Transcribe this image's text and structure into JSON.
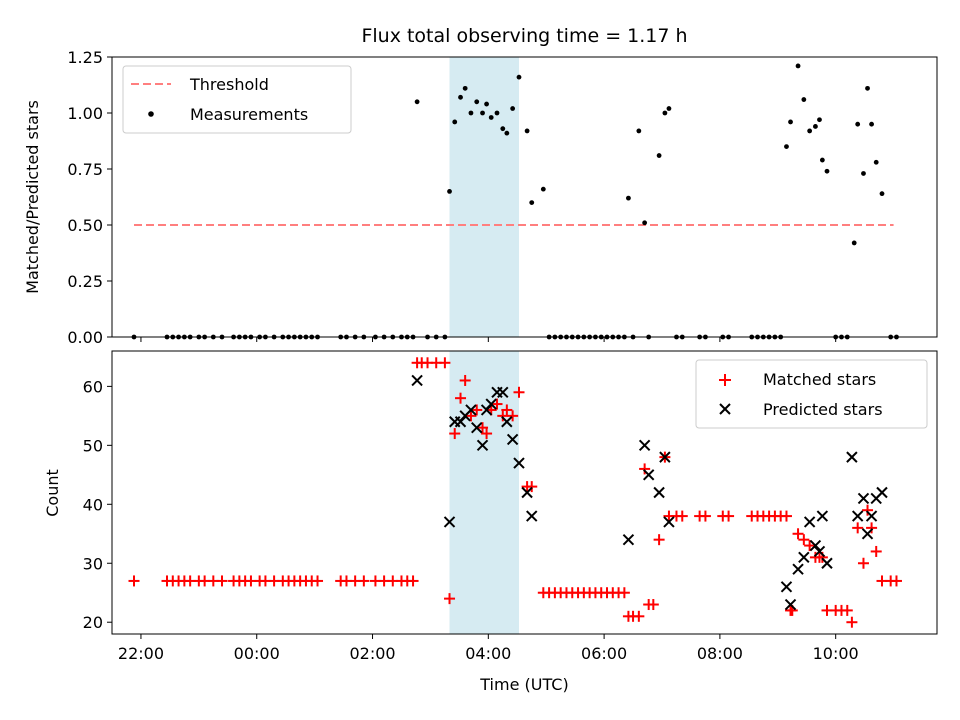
{
  "chart_data": {
    "type": "scatter",
    "title": "Flux total observing time = 1.17 h",
    "xlabel": "Time (UTC)",
    "x_units": "hours since 00:00 UTC",
    "xlim": [
      -2.5,
      11.75
    ],
    "x_ticks": [
      {
        "value": -2,
        "label": "22:00"
      },
      {
        "value": 0,
        "label": "00:00"
      },
      {
        "value": 2,
        "label": "02:00"
      },
      {
        "value": 4,
        "label": "04:00"
      },
      {
        "value": 6,
        "label": "06:00"
      },
      {
        "value": 8,
        "label": "08:00"
      },
      {
        "value": 10,
        "label": "10:00"
      }
    ],
    "highlight_span": {
      "start": 3.33,
      "end": 4.53,
      "color": "#add8e6"
    },
    "top": {
      "ylabel": "Matched/Predicted stars",
      "ylim": [
        0,
        1.25
      ],
      "y_ticks": [
        {
          "value": 0,
          "label": "0.00"
        },
        {
          "value": 0.25,
          "label": "0.25"
        },
        {
          "value": 0.5,
          "label": "0.50"
        },
        {
          "value": 0.75,
          "label": "0.75"
        },
        {
          "value": 1.0,
          "label": "1.00"
        },
        {
          "value": 1.25,
          "label": "1.25"
        }
      ],
      "legend": {
        "position": "upper-left",
        "threshold_label": "Threshold",
        "measurements_label": "Measurements"
      },
      "threshold": {
        "value": 0.5,
        "x_range": [
          -2.12,
          11.0
        ],
        "color": "#ff7f7f"
      },
      "measurements": {
        "color": "#000000",
        "x": [
          -2.12,
          -1.55,
          -1.45,
          -1.35,
          -1.25,
          -1.15,
          -1.0,
          -0.9,
          -0.75,
          -0.6,
          -0.4,
          -0.3,
          -0.2,
          -0.1,
          0.05,
          0.15,
          0.3,
          0.45,
          0.55,
          0.65,
          0.75,
          0.85,
          0.95,
          1.05,
          1.45,
          1.55,
          1.7,
          1.85,
          2.05,
          2.2,
          2.35,
          2.5,
          2.6,
          2.7,
          2.77,
          2.95,
          3.1,
          3.25,
          3.33,
          3.42,
          3.52,
          3.6,
          3.7,
          3.8,
          3.9,
          3.97,
          4.05,
          4.15,
          4.25,
          4.32,
          4.42,
          4.53,
          4.67,
          4.75,
          4.95,
          5.05,
          5.15,
          5.25,
          5.35,
          5.45,
          5.55,
          5.65,
          5.75,
          5.85,
          5.95,
          6.05,
          6.15,
          6.25,
          6.35,
          6.42,
          6.5,
          6.6,
          6.7,
          6.77,
          6.95,
          7.05,
          7.12,
          7.25,
          7.35,
          7.65,
          7.75,
          8.05,
          8.15,
          8.55,
          8.65,
          8.75,
          8.85,
          8.95,
          9.05,
          9.15,
          9.22,
          9.35,
          9.45,
          9.55,
          9.65,
          9.72,
          9.77,
          9.85,
          10.0,
          10.1,
          10.2,
          10.32,
          10.38,
          10.48,
          10.55,
          10.62,
          10.7,
          10.8,
          10.95,
          11.05
        ],
        "y": [
          0.0,
          0.0,
          0.0,
          0.0,
          0.0,
          0.0,
          0.0,
          0.0,
          0.0,
          0.0,
          0.0,
          0.0,
          0.0,
          0.0,
          0.0,
          0.0,
          0.0,
          0.0,
          0.0,
          0.0,
          0.0,
          0.0,
          0.0,
          0.0,
          0.0,
          0.0,
          0.0,
          0.0,
          0.0,
          0.0,
          0.0,
          0.0,
          0.0,
          0.0,
          1.05,
          0.0,
          0.0,
          0.0,
          0.65,
          0.96,
          1.07,
          1.11,
          1.0,
          1.05,
          1.0,
          1.04,
          0.98,
          1.0,
          0.93,
          0.91,
          1.02,
          1.16,
          0.92,
          0.6,
          0.66,
          0.0,
          0.0,
          0.0,
          0.0,
          0.0,
          0.0,
          0.0,
          0.0,
          0.0,
          0.0,
          0.0,
          0.0,
          0.0,
          0.0,
          0.62,
          0.0,
          0.92,
          0.51,
          0.0,
          0.81,
          1.0,
          1.02,
          0.0,
          0.0,
          0.0,
          0.0,
          0.0,
          0.0,
          0.0,
          0.0,
          0.0,
          0.0,
          0.0,
          0.0,
          0.85,
          0.96,
          1.21,
          1.06,
          0.92,
          0.94,
          0.97,
          0.79,
          0.74,
          0.0,
          0.0,
          0.0,
          0.42,
          0.95,
          0.73,
          1.11,
          0.95,
          0.78,
          0.64,
          0.0,
          0.0
        ]
      }
    },
    "bottom": {
      "ylabel": "Count",
      "ylim": [
        18,
        66
      ],
      "y_ticks": [
        {
          "value": 20,
          "label": "20"
        },
        {
          "value": 30,
          "label": "30"
        },
        {
          "value": 40,
          "label": "40"
        },
        {
          "value": 50,
          "label": "50"
        },
        {
          "value": 60,
          "label": "60"
        }
      ],
      "legend": {
        "position": "upper-right",
        "matched_label": "Matched stars",
        "predicted_label": "Predicted stars"
      },
      "matched": {
        "color": "#ff0000",
        "x": [
          -2.12,
          -1.55,
          -1.45,
          -1.35,
          -1.25,
          -1.15,
          -1.0,
          -0.9,
          -0.75,
          -0.6,
          -0.4,
          -0.3,
          -0.2,
          -0.1,
          0.05,
          0.15,
          0.3,
          0.45,
          0.55,
          0.65,
          0.75,
          0.85,
          0.95,
          1.05,
          1.45,
          1.55,
          1.7,
          1.85,
          2.05,
          2.2,
          2.35,
          2.5,
          2.6,
          2.7,
          2.77,
          2.85,
          2.95,
          3.1,
          3.25,
          3.33,
          3.42,
          3.52,
          3.6,
          3.7,
          3.8,
          3.9,
          3.97,
          4.05,
          4.15,
          4.25,
          4.32,
          4.42,
          4.53,
          4.67,
          4.75,
          4.95,
          5.05,
          5.15,
          5.25,
          5.35,
          5.45,
          5.55,
          5.65,
          5.75,
          5.85,
          5.95,
          6.05,
          6.15,
          6.25,
          6.35,
          6.42,
          6.5,
          6.6,
          6.7,
          6.77,
          6.85,
          6.95,
          7.05,
          7.12,
          7.25,
          7.35,
          7.65,
          7.75,
          8.05,
          8.15,
          8.55,
          8.65,
          8.75,
          8.85,
          8.95,
          9.05,
          9.15,
          9.22,
          9.25,
          9.35,
          9.45,
          9.55,
          9.65,
          9.72,
          9.77,
          9.85,
          10.0,
          10.1,
          10.2,
          10.28,
          10.38,
          10.48,
          10.55,
          10.62,
          10.7,
          10.8,
          10.95,
          11.05
        ],
        "y": [
          27,
          27,
          27,
          27,
          27,
          27,
          27,
          27,
          27,
          27,
          27,
          27,
          27,
          27,
          27,
          27,
          27,
          27,
          27,
          27,
          27,
          27,
          27,
          27,
          27,
          27,
          27,
          27,
          27,
          27,
          27,
          27,
          27,
          27,
          64,
          64,
          64,
          64,
          64,
          24,
          52,
          58,
          61,
          55,
          56,
          53,
          52,
          56,
          57,
          55,
          56,
          55,
          59,
          43,
          43,
          25,
          25,
          25,
          25,
          25,
          25,
          25,
          25,
          25,
          25,
          25,
          25,
          25,
          25,
          25,
          21,
          21,
          21,
          46,
          23,
          23,
          34,
          48,
          38,
          38,
          38,
          38,
          38,
          38,
          38,
          38,
          38,
          38,
          38,
          38,
          38,
          38,
          22,
          22,
          35,
          34,
          33,
          31,
          31,
          31,
          22,
          22,
          22,
          22,
          20,
          36,
          30,
          39,
          36,
          32,
          27,
          27,
          27
        ]
      },
      "predicted": {
        "color": "#000000",
        "x": [
          2.77,
          3.33,
          3.42,
          3.52,
          3.6,
          3.7,
          3.8,
          3.9,
          3.97,
          4.05,
          4.15,
          4.25,
          4.32,
          4.42,
          4.53,
          4.67,
          4.75,
          6.42,
          6.7,
          6.77,
          6.95,
          7.05,
          7.12,
          9.15,
          9.22,
          9.35,
          9.45,
          9.55,
          9.65,
          9.72,
          9.77,
          9.85,
          10.28,
          10.38,
          10.48,
          10.55,
          10.62,
          10.7,
          10.8
        ],
        "y": [
          61,
          37,
          54,
          54,
          55,
          56,
          53,
          50,
          56,
          57,
          59,
          59,
          54,
          51,
          47,
          42,
          38,
          34,
          50,
          45,
          42,
          48,
          37,
          26,
          23,
          29,
          31,
          37,
          33,
          32,
          38,
          30,
          48,
          38,
          41,
          35,
          38,
          41,
          42
        ]
      }
    }
  }
}
